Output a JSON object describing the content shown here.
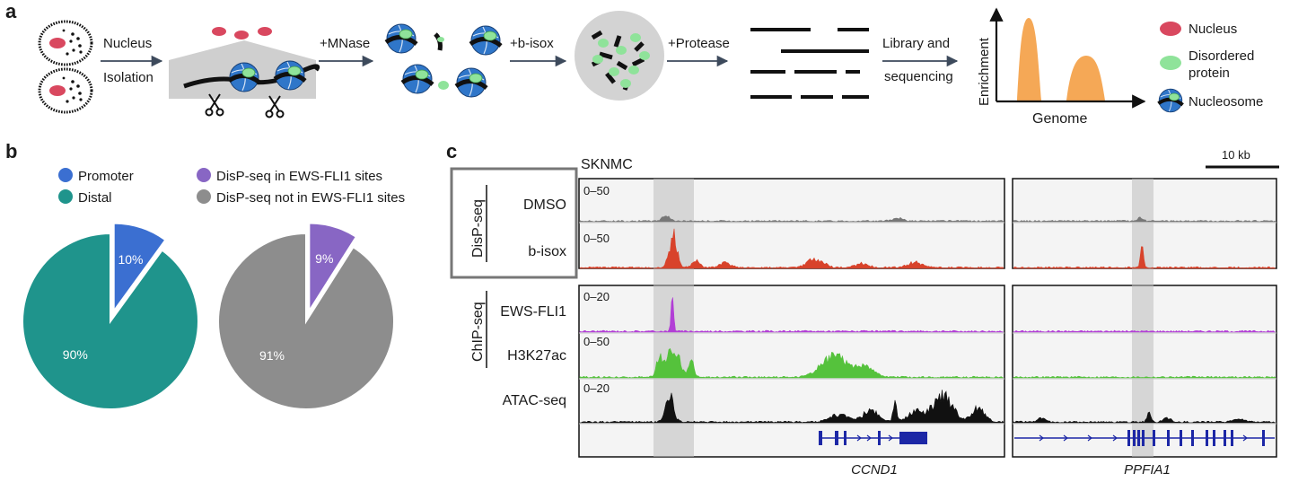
{
  "panel_a": {
    "letter": "a",
    "steps": [
      "Nucleus",
      "Isolation",
      "+MNase",
      "+b-isox",
      "+Protease",
      "Library and",
      "sequencing"
    ],
    "chart_ylabel": "Enrichment",
    "chart_xlabel": "Genome",
    "legend": [
      {
        "label": "Nucleus",
        "color": "#d9485f"
      },
      {
        "label": "Disordered",
        "label2": "protein",
        "color": "#8fe39a"
      },
      {
        "label": "Nucleosome",
        "color": "#2f76c9"
      }
    ],
    "peak_color": "#f5a856"
  },
  "panel_b": {
    "letter": "b",
    "legend": [
      {
        "label": "Promoter",
        "color": "#3b6fd1"
      },
      {
        "label": "Distal",
        "color": "#1f948c"
      },
      {
        "label": "DisP-seq in EWS-FLI1 sites",
        "color": "#8866c4"
      },
      {
        "label": "DisP-seq not in EWS-FLI1 sites",
        "color": "#8d8d8d"
      }
    ]
  },
  "chart_data": [
    {
      "type": "pie",
      "labels": [
        "Promoter",
        "Distal"
      ],
      "values": [
        10,
        90
      ],
      "value_labels": [
        "10%",
        "90%"
      ],
      "colors": [
        "#3b6fd1",
        "#1f948c"
      ],
      "exploded": "Promoter"
    },
    {
      "type": "pie",
      "labels": [
        "DisP-seq in EWS-FLI1 sites",
        "DisP-seq not in EWS-FLI1 sites"
      ],
      "values": [
        9,
        91
      ],
      "value_labels": [
        "9%",
        "91%"
      ],
      "colors": [
        "#8866c4",
        "#8d8d8d"
      ],
      "exploded": "DisP-seq in EWS-FLI1 sites"
    }
  ],
  "panel_c": {
    "letter": "c",
    "cell_line": "SKNMC",
    "scale_bar": "10 kb",
    "group_labels": [
      "DisP-seq",
      "ChIP-seq"
    ],
    "tracks": [
      {
        "name": "DMSO",
        "range": "0–50",
        "color": "#777777"
      },
      {
        "name": "b-isox",
        "range": "0–50",
        "color": "#d8432b"
      },
      {
        "name": "EWS-FLI1",
        "range": "0–20",
        "color": "#b23fd6"
      },
      {
        "name": "H3K27ac",
        "range": "0–50",
        "color": "#55c23c"
      },
      {
        "name": "ATAC-seq",
        "range": "0–20",
        "color": "#111111"
      }
    ],
    "genes": [
      "CCND1",
      "PPFIA1"
    ],
    "gene_color": "#1c27a6"
  }
}
